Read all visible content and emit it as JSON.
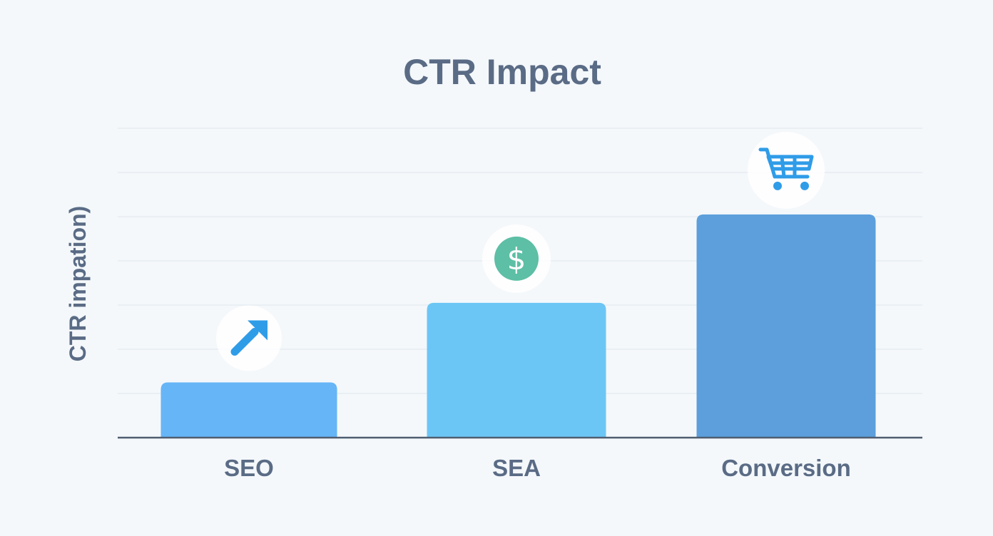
{
  "chart_data": {
    "type": "bar",
    "title": "CTR Impact",
    "xlabel": "",
    "ylabel": "CTR impation)",
    "categories": [
      "SEO",
      "SEA",
      "Conversion"
    ],
    "values": [
      1.25,
      3.05,
      5.05
    ],
    "ylim": [
      0,
      7
    ],
    "grid": true,
    "legend": "none",
    "bar_colors": [
      "#66b5f7",
      "#6cc6f5",
      "#5c9fdc"
    ],
    "icons": [
      "trend-up-arrow-icon",
      "dollar-coin-icon",
      "shopping-cart-icon"
    ],
    "colors": {
      "background": "#f4f8fb",
      "text": "#5a6b85",
      "gridline": "#e6ecf1",
      "axis": "#4f5d70",
      "icon_blue": "#2f9ce8",
      "icon_green": "#5dbfa5"
    }
  }
}
